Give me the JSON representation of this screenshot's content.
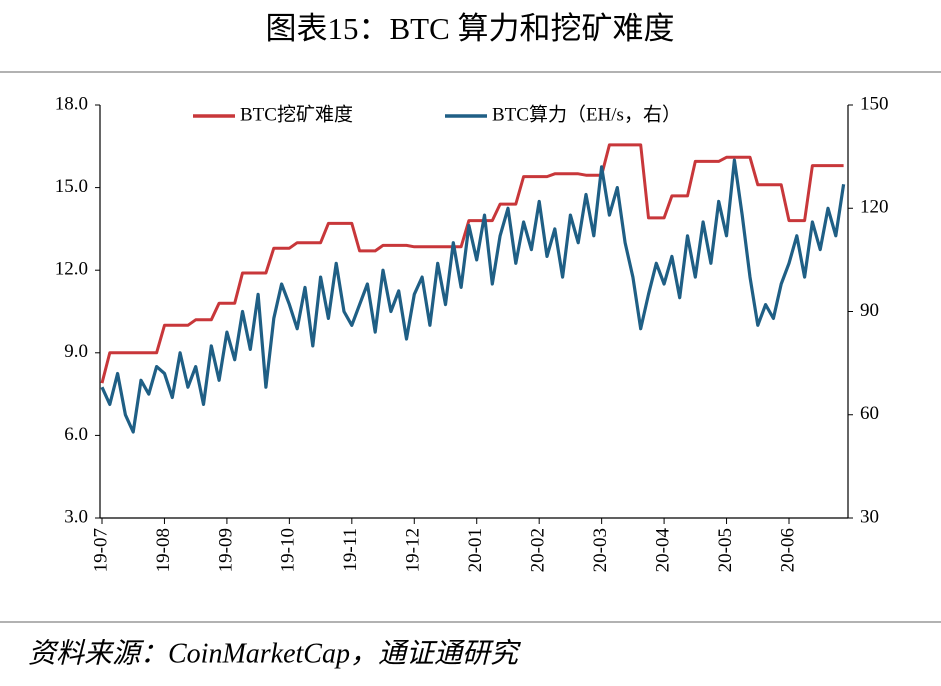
{
  "chart_data": {
    "type": "line",
    "title": "图表15：BTC 算力和挖矿难度",
    "source": "资料来源：CoinMarketCap，通证通研究",
    "categories": [
      "19-07",
      null,
      null,
      null,
      null,
      null,
      null,
      null,
      "19-08",
      null,
      null,
      null,
      null,
      null,
      null,
      null,
      "19-09",
      null,
      null,
      null,
      null,
      null,
      null,
      null,
      "19-10",
      null,
      null,
      null,
      null,
      null,
      null,
      null,
      "19-11",
      null,
      null,
      null,
      null,
      null,
      null,
      null,
      "19-12",
      null,
      null,
      null,
      null,
      null,
      null,
      null,
      "20-01",
      null,
      null,
      null,
      null,
      null,
      null,
      null,
      "20-02",
      null,
      null,
      null,
      null,
      null,
      null,
      null,
      "20-03",
      null,
      null,
      null,
      null,
      null,
      null,
      null,
      "20-04",
      null,
      null,
      null,
      null,
      null,
      null,
      null,
      "20-05",
      null,
      null,
      null,
      null,
      null,
      null,
      null,
      "20-06",
      null,
      null,
      null,
      null,
      null,
      null,
      null
    ],
    "series": [
      {
        "name": "BTC挖矿难度",
        "color": "#c8373a",
        "values": [
          7.9,
          9.0,
          9.0,
          9.0,
          9.0,
          9.0,
          9.0,
          9.0,
          10.0,
          10.0,
          10.0,
          10.0,
          10.2,
          10.2,
          10.2,
          10.8,
          10.8,
          10.8,
          11.9,
          11.9,
          11.9,
          11.9,
          12.8,
          12.8,
          12.8,
          13.0,
          13.0,
          13.0,
          13.0,
          13.7,
          13.7,
          13.7,
          13.7,
          12.7,
          12.7,
          12.7,
          12.9,
          12.9,
          12.9,
          12.9,
          12.85,
          12.85,
          12.85,
          12.85,
          12.85,
          12.85,
          12.85,
          13.8,
          13.8,
          13.8,
          13.8,
          14.4,
          14.4,
          14.4,
          15.4,
          15.4,
          15.4,
          15.4,
          15.5,
          15.5,
          15.5,
          15.5,
          15.45,
          15.45,
          15.45,
          16.55,
          16.55,
          16.55,
          16.55,
          16.55,
          13.9,
          13.9,
          13.9,
          14.7,
          14.7,
          14.7,
          15.95,
          15.95,
          15.95,
          15.95,
          16.1,
          16.1,
          16.1,
          16.1,
          15.1,
          15.1,
          15.1,
          15.1,
          13.8,
          13.8,
          13.8,
          15.8,
          15.8,
          15.8,
          15.8,
          15.8
        ]
      },
      {
        "name": "BTC算力（EH/s，右）",
        "color": "#1f5f85",
        "axis": "y2",
        "values": [
          68,
          63,
          72,
          60,
          55,
          70,
          66,
          74,
          72,
          65,
          78,
          68,
          74,
          63,
          80,
          70,
          84,
          76,
          90,
          79,
          95,
          68,
          88,
          98,
          92,
          85,
          97,
          80,
          100,
          88,
          104,
          90,
          86,
          92,
          98,
          84,
          102,
          90,
          96,
          82,
          95,
          100,
          86,
          104,
          92,
          110,
          97,
          115,
          105,
          118,
          98,
          112,
          120,
          104,
          116,
          108,
          122,
          106,
          114,
          100,
          118,
          110,
          124,
          112,
          132,
          118,
          126,
          110,
          100,
          85,
          95,
          104,
          98,
          106,
          94,
          112,
          100,
          116,
          104,
          122,
          112,
          134,
          118,
          100,
          86,
          92,
          88,
          98,
          104,
          112,
          100,
          116,
          108,
          120,
          112,
          127
        ]
      }
    ],
    "ylim": [
      3,
      18
    ],
    "yticks": [
      {
        "value": 3,
        "label": "3.0"
      },
      {
        "value": 6,
        "label": "6.0"
      },
      {
        "value": 9,
        "label": "9.0"
      },
      {
        "value": 12,
        "label": "12.0"
      },
      {
        "value": 15,
        "label": "15.0"
      },
      {
        "value": 18,
        "label": "18.0"
      }
    ],
    "y2lim": [
      30,
      150
    ],
    "y2ticks": [
      30,
      60,
      90,
      120,
      150
    ],
    "legend": "top"
  }
}
